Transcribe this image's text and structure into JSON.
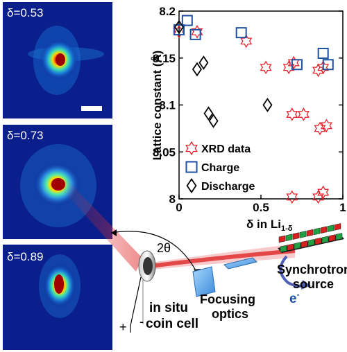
{
  "panels": [
    {
      "label": "δ=0.53"
    },
    {
      "label": "δ=0.73"
    },
    {
      "label": "δ=0.89"
    }
  ],
  "setup": {
    "angle": "2θ",
    "plus": "+",
    "minus": "-",
    "cell_line1": "in situ",
    "cell_line2": "coin cell",
    "optics_line1": "Focusing",
    "optics_line2": "optics",
    "source_line1": "Synchrotron",
    "source_line2": "source",
    "electron": "e",
    "electron_sup": "-"
  },
  "colors": {
    "xrd": "#e8202a",
    "charge": "#1f4fa0",
    "discharge": "#000000",
    "beam": "#e03030",
    "detector_bg": "#0a1e8c"
  },
  "chart_data": {
    "type": "scatter",
    "xlabel": "δ in Li",
    "xlabel_sub": "1-δ",
    "ylabel": "Lattice constant (Å)",
    "xlim": [
      0,
      1
    ],
    "ylim": [
      8,
      8.2
    ],
    "xticks": [
      "0",
      "0.5",
      "1"
    ],
    "yticks": [
      "8",
      "8.05",
      "8.1",
      "8.15",
      "8.2"
    ],
    "legend_position": "lower-left",
    "series": [
      {
        "name": "XRD data",
        "marker": "star",
        "points": [
          [
            0,
            8.178
          ],
          [
            0.11,
            8.178
          ],
          [
            0.41,
            8.168
          ],
          [
            0.53,
            8.14
          ],
          [
            0.67,
            8.14
          ],
          [
            0.7,
            8.145
          ],
          [
            0.69,
            8.09
          ],
          [
            0.76,
            8.09
          ],
          [
            0.85,
            8.137
          ],
          [
            0.88,
            8.14
          ],
          [
            0.86,
            8.075
          ],
          [
            0.9,
            8.078
          ],
          [
            0.69,
            8.002
          ],
          [
            0.85,
            8.002
          ],
          [
            0.88,
            8.007
          ]
        ]
      },
      {
        "name": "Charge",
        "marker": "square",
        "points": [
          [
            0,
            8.18
          ],
          [
            0.05,
            8.19
          ],
          [
            0.1,
            8.175
          ],
          [
            0.38,
            8.177
          ],
          [
            0.72,
            8.143
          ],
          [
            0.88,
            8.155
          ],
          [
            0.91,
            8.143
          ]
        ]
      },
      {
        "name": "Discharge",
        "marker": "diamond",
        "points": [
          [
            0,
            8.183
          ],
          [
            0.11,
            8.138
          ],
          [
            0.15,
            8.145
          ],
          [
            0.18,
            8.091
          ],
          [
            0.21,
            8.083
          ],
          [
            0.54,
            8.1
          ]
        ]
      }
    ]
  }
}
